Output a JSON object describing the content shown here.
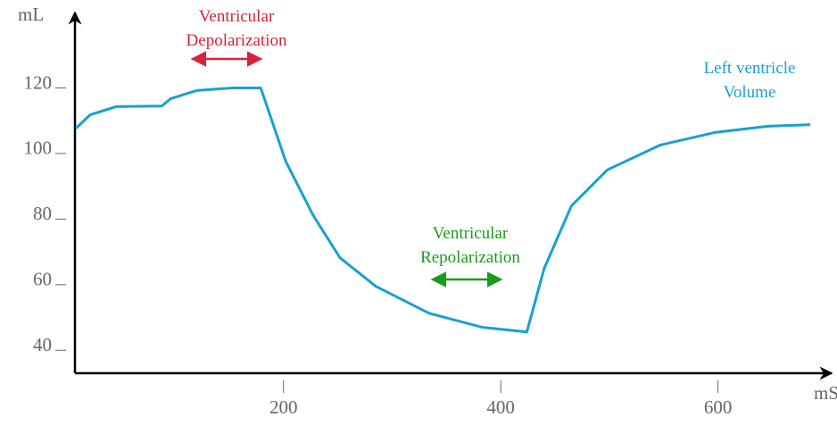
{
  "chart_data": {
    "type": "line",
    "x_label": "mS",
    "y_label": "mL",
    "xlim": [
      8,
      703
    ],
    "ylim": [
      33,
      143
    ],
    "xticks": [
      200,
      400,
      600
    ],
    "yticks": [
      40,
      60,
      80,
      100,
      120
    ],
    "series": [
      {
        "name": "Left ventricle Volume",
        "color": "#1aa0d0",
        "x": [
          9,
          22,
          46,
          88,
          96,
          120,
          153,
          179,
          202,
          227,
          252,
          285,
          334,
          383,
          424,
          440,
          465,
          498,
          547,
          597,
          646,
          685
        ],
        "values": [
          107.7,
          111.8,
          114.3,
          114.5,
          116.7,
          119.2,
          120,
          120,
          97.7,
          81.3,
          68.2,
          59.5,
          51.3,
          47,
          45.6,
          65,
          84,
          95,
          102.6,
          106.4,
          108.3,
          108.8
        ]
      }
    ],
    "annotations": [
      {
        "text": "Ventricular Depolarization",
        "color": "#d6233c"
      },
      {
        "text": "Ventricular Repolarization",
        "color": "#1a9a1a"
      }
    ]
  }
}
